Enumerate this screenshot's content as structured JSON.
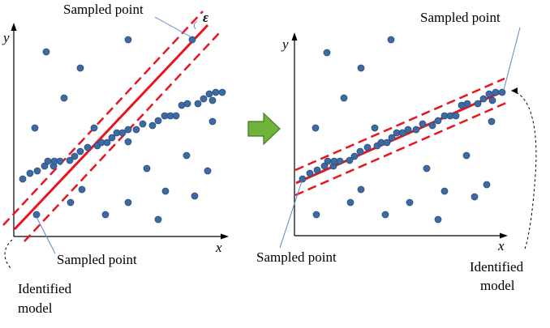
{
  "labels": {
    "left_sampled_top": "Sampled point",
    "left_epsilon": "ε",
    "left_sampled_bottom": "Sampled point",
    "left_identified_line1": "Identified",
    "left_identified_line2": "model",
    "right_sampled_top": "Sampled point",
    "right_sampled_bottom": "Sampled point",
    "right_identified_line1": "Identified",
    "right_identified_line2": "model",
    "axis_x": "x",
    "axis_y": "y"
  },
  "colors": {
    "model_line": "#e8141e",
    "point": "#3d6aa0",
    "arrow_fill": "#6fb33b",
    "axis": "#000000"
  },
  "icons": {
    "transition_arrow": "right-arrow-icon"
  }
}
